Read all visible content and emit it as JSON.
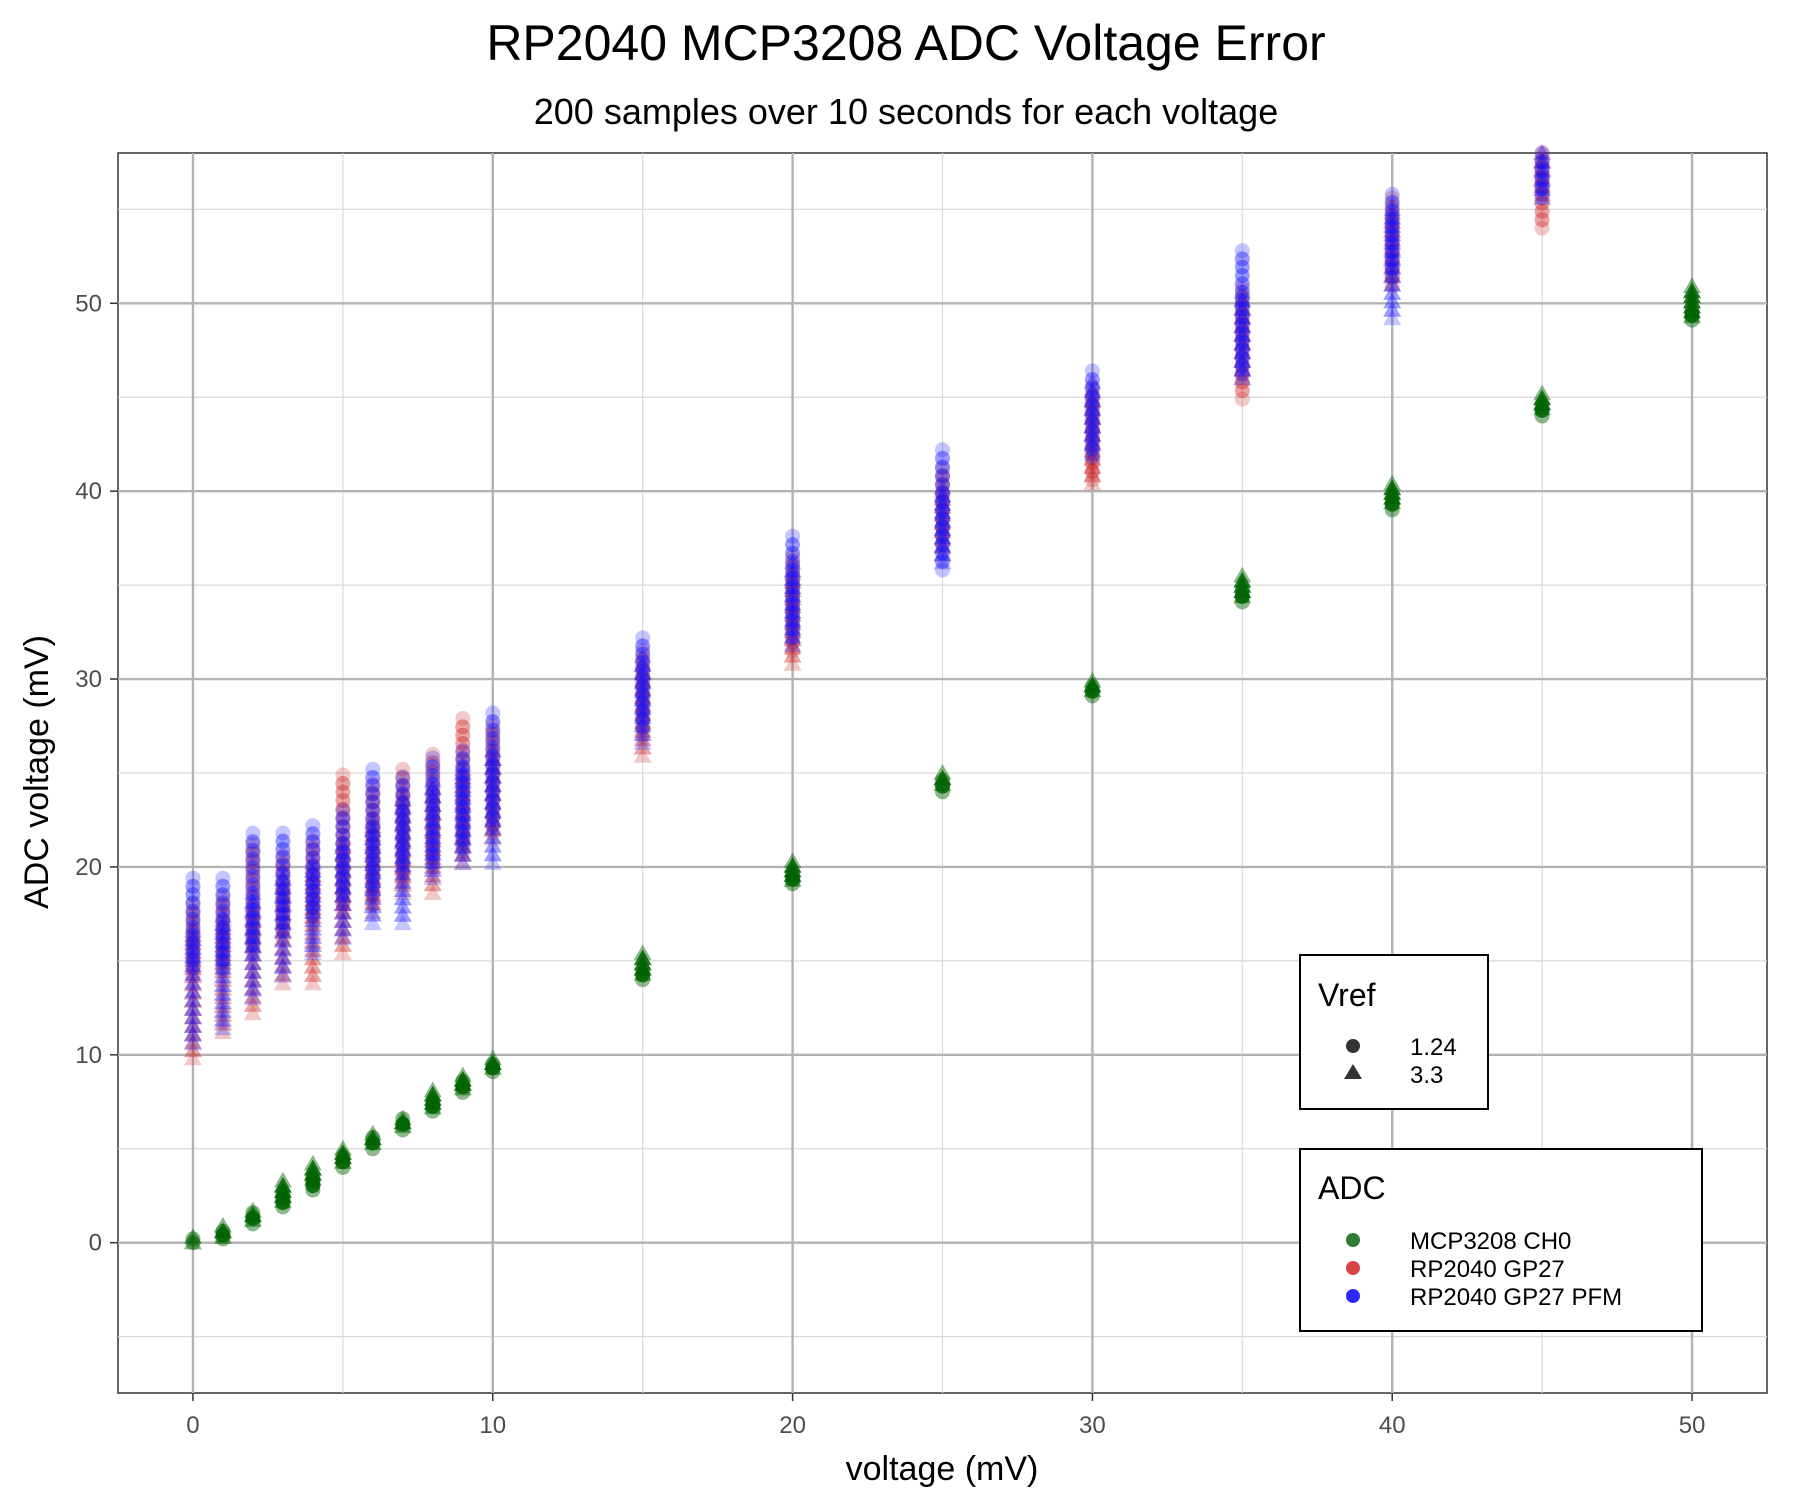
{
  "chart_data": {
    "type": "scatter",
    "title": "RP2040 MCP3208 ADC Voltage Error",
    "subtitle": "200 samples over 10 seconds for each voltage",
    "xlabel": "voltage (mV)",
    "ylabel": "ADC voltage (mV)",
    "xlim": [
      -2.5,
      52.5
    ],
    "ylim": [
      -8,
      58
    ],
    "x_ticks": [
      0,
      10,
      20,
      30,
      40,
      50
    ],
    "y_ticks": [
      0,
      10,
      20,
      30,
      40,
      50
    ],
    "x_tick_labels": [
      "0",
      "10",
      "20",
      "30",
      "40",
      "50"
    ],
    "y_tick_labels": [
      "0",
      "10",
      "20",
      "30",
      "40",
      "50"
    ],
    "grid": true,
    "colors": {
      "MCP3208 CH0": "#006400",
      "RP2040 GP27": "#cd2626",
      "RP2040 GP27 PFM": "#1414ff"
    },
    "legends": [
      {
        "title": "Vref",
        "placement": "right-middle",
        "entries": [
          {
            "label": "1.24",
            "shape": "circle"
          },
          {
            "label": "3.3",
            "shape": "triangle"
          }
        ]
      },
      {
        "title": "ADC",
        "placement": "bottom-right",
        "entries": [
          {
            "label": "MCP3208 CH0",
            "color": "#2e7d32"
          },
          {
            "label": "RP2040 GP27",
            "color": "#d64545"
          },
          {
            "label": "RP2040 GP27 PFM",
            "color": "#2a2aff"
          }
        ]
      }
    ],
    "series": [
      {
        "adc": "MCP3208 CH0",
        "vref": "1.24",
        "shape": "circle",
        "color": "#006400",
        "ranges": [
          [
            0,
            0,
            0.2
          ],
          [
            1,
            0.2,
            0.6
          ],
          [
            2,
            1.0,
            1.6
          ],
          [
            3,
            1.9,
            2.6
          ],
          [
            4,
            2.8,
            3.5
          ],
          [
            5,
            4.0,
            4.6
          ],
          [
            6,
            5.0,
            5.6
          ],
          [
            7,
            6.0,
            6.6
          ],
          [
            8,
            7.0,
            7.5
          ],
          [
            9,
            8.0,
            8.6
          ],
          [
            10,
            9.1,
            9.5
          ],
          [
            15,
            14.0,
            14.5
          ],
          [
            20,
            19.1,
            19.6
          ],
          [
            25,
            24.0,
            24.6
          ],
          [
            30,
            29.1,
            29.6
          ],
          [
            35,
            34.1,
            34.7
          ],
          [
            40,
            39.0,
            39.6
          ],
          [
            45,
            44.0,
            44.6
          ],
          [
            50,
            49.1,
            49.6
          ]
        ]
      },
      {
        "adc": "MCP3208 CH0",
        "vref": "3.3",
        "shape": "triangle",
        "color": "#006400",
        "ranges": [
          [
            0,
            0,
            0.3
          ],
          [
            1,
            0.3,
            0.9
          ],
          [
            2,
            1.2,
            1.7
          ],
          [
            3,
            2.2,
            3.3
          ],
          [
            4,
            3.4,
            4.2
          ],
          [
            5,
            4.3,
            5.0
          ],
          [
            6,
            5.3,
            5.8
          ],
          [
            7,
            6.2,
            6.6
          ],
          [
            8,
            7.2,
            8.1
          ],
          [
            9,
            8.2,
            8.9
          ],
          [
            10,
            9.3,
            9.8
          ],
          [
            15,
            14.3,
            15.4
          ],
          [
            20,
            19.3,
            20.3
          ],
          [
            25,
            24.4,
            25.0
          ],
          [
            30,
            29.4,
            29.9
          ],
          [
            35,
            34.4,
            35.5
          ],
          [
            40,
            39.4,
            40.4
          ],
          [
            45,
            44.4,
            45.2
          ],
          [
            50,
            49.3,
            50.9
          ]
        ]
      },
      {
        "adc": "RP2040 GP27",
        "vref": "1.24",
        "shape": "circle",
        "color": "#cd2626",
        "ranges": [
          [
            0,
            14.2,
            18.0
          ],
          [
            1,
            14.5,
            18.4
          ],
          [
            2,
            15.6,
            21.2
          ],
          [
            3,
            16.2,
            20.6
          ],
          [
            4,
            17.0,
            21.4
          ],
          [
            5,
            17.6,
            24.9
          ],
          [
            6,
            18.0,
            24.4
          ],
          [
            7,
            19.2,
            25.2
          ],
          [
            8,
            20.0,
            26.0
          ],
          [
            9,
            20.8,
            27.9
          ],
          [
            10,
            21.8,
            27.5
          ],
          [
            15,
            27.0,
            31.5
          ],
          [
            20,
            31.5,
            36.5
          ],
          [
            25,
            37.2,
            41.2
          ],
          [
            30,
            40.6,
            45.6
          ],
          [
            35,
            44.9,
            50.8
          ],
          [
            40,
            50.9,
            55.6
          ],
          [
            45,
            54.0,
            58
          ]
        ]
      },
      {
        "adc": "RP2040 GP27",
        "vref": "3.3",
        "shape": "triangle",
        "color": "#cd2626",
        "ranges": [
          [
            0,
            9.8,
            16.8
          ],
          [
            1,
            11.2,
            17.2
          ],
          [
            2,
            12.2,
            18.0
          ],
          [
            3,
            13.8,
            19.4
          ],
          [
            4,
            13.8,
            20.0
          ],
          [
            5,
            15.4,
            21.5
          ],
          [
            6,
            17.6,
            22.6
          ],
          [
            7,
            18.6,
            24.0
          ],
          [
            8,
            18.6,
            24.2
          ],
          [
            9,
            20.2,
            25.2
          ],
          [
            10,
            21.5,
            26.2
          ],
          [
            15,
            25.9,
            30.8
          ],
          [
            20,
            30.8,
            35.6
          ],
          [
            25,
            36.6,
            40.0
          ],
          [
            30,
            40.4,
            45.2
          ],
          [
            35,
            46.0,
            50.2
          ],
          [
            40,
            51.0,
            54.8
          ],
          [
            45,
            55.8,
            58
          ]
        ]
      },
      {
        "adc": "RP2040 GP27 PFM",
        "vref": "1.24",
        "shape": "circle",
        "color": "#1414ff",
        "ranges": [
          [
            0,
            14.6,
            19.4
          ],
          [
            1,
            14.6,
            19.4
          ],
          [
            2,
            15.4,
            21.8
          ],
          [
            3,
            16.6,
            21.8
          ],
          [
            4,
            17.4,
            22.2
          ],
          [
            5,
            18.2,
            23.0
          ],
          [
            6,
            18.6,
            25.2
          ],
          [
            7,
            19.8,
            24.8
          ],
          [
            8,
            20.2,
            25.8
          ],
          [
            9,
            21.0,
            26.2
          ],
          [
            10,
            22.2,
            28.2
          ],
          [
            15,
            27.4,
            32.2
          ],
          [
            20,
            32.2,
            37.6
          ],
          [
            25,
            35.8,
            42.2
          ],
          [
            30,
            41.8,
            46.4
          ],
          [
            35,
            46.2,
            52.8
          ],
          [
            40,
            51.4,
            55.8
          ],
          [
            45,
            55.6,
            58
          ]
        ]
      },
      {
        "adc": "RP2040 GP27 PFM",
        "vref": "3.3",
        "shape": "triangle",
        "color": "#1414ff",
        "ranges": [
          [
            0,
            10.6,
            16.6
          ],
          [
            1,
            11.4,
            17.4
          ],
          [
            2,
            13.0,
            18.6
          ],
          [
            3,
            14.2,
            19.8
          ],
          [
            4,
            15.4,
            20.2
          ],
          [
            5,
            16.2,
            21.2
          ],
          [
            6,
            17.0,
            22.4
          ],
          [
            7,
            17.0,
            23.6
          ],
          [
            8,
            19.4,
            24.6
          ],
          [
            9,
            20.2,
            25.4
          ],
          [
            10,
            20.2,
            26.2
          ],
          [
            15,
            26.6,
            31.2
          ],
          [
            20,
            31.8,
            36.2
          ],
          [
            25,
            36.2,
            40.2
          ],
          [
            30,
            42.0,
            45.8
          ],
          [
            35,
            46.0,
            50.6
          ],
          [
            40,
            49.2,
            55.0
          ],
          [
            45,
            55.6,
            58
          ]
        ]
      }
    ]
  }
}
